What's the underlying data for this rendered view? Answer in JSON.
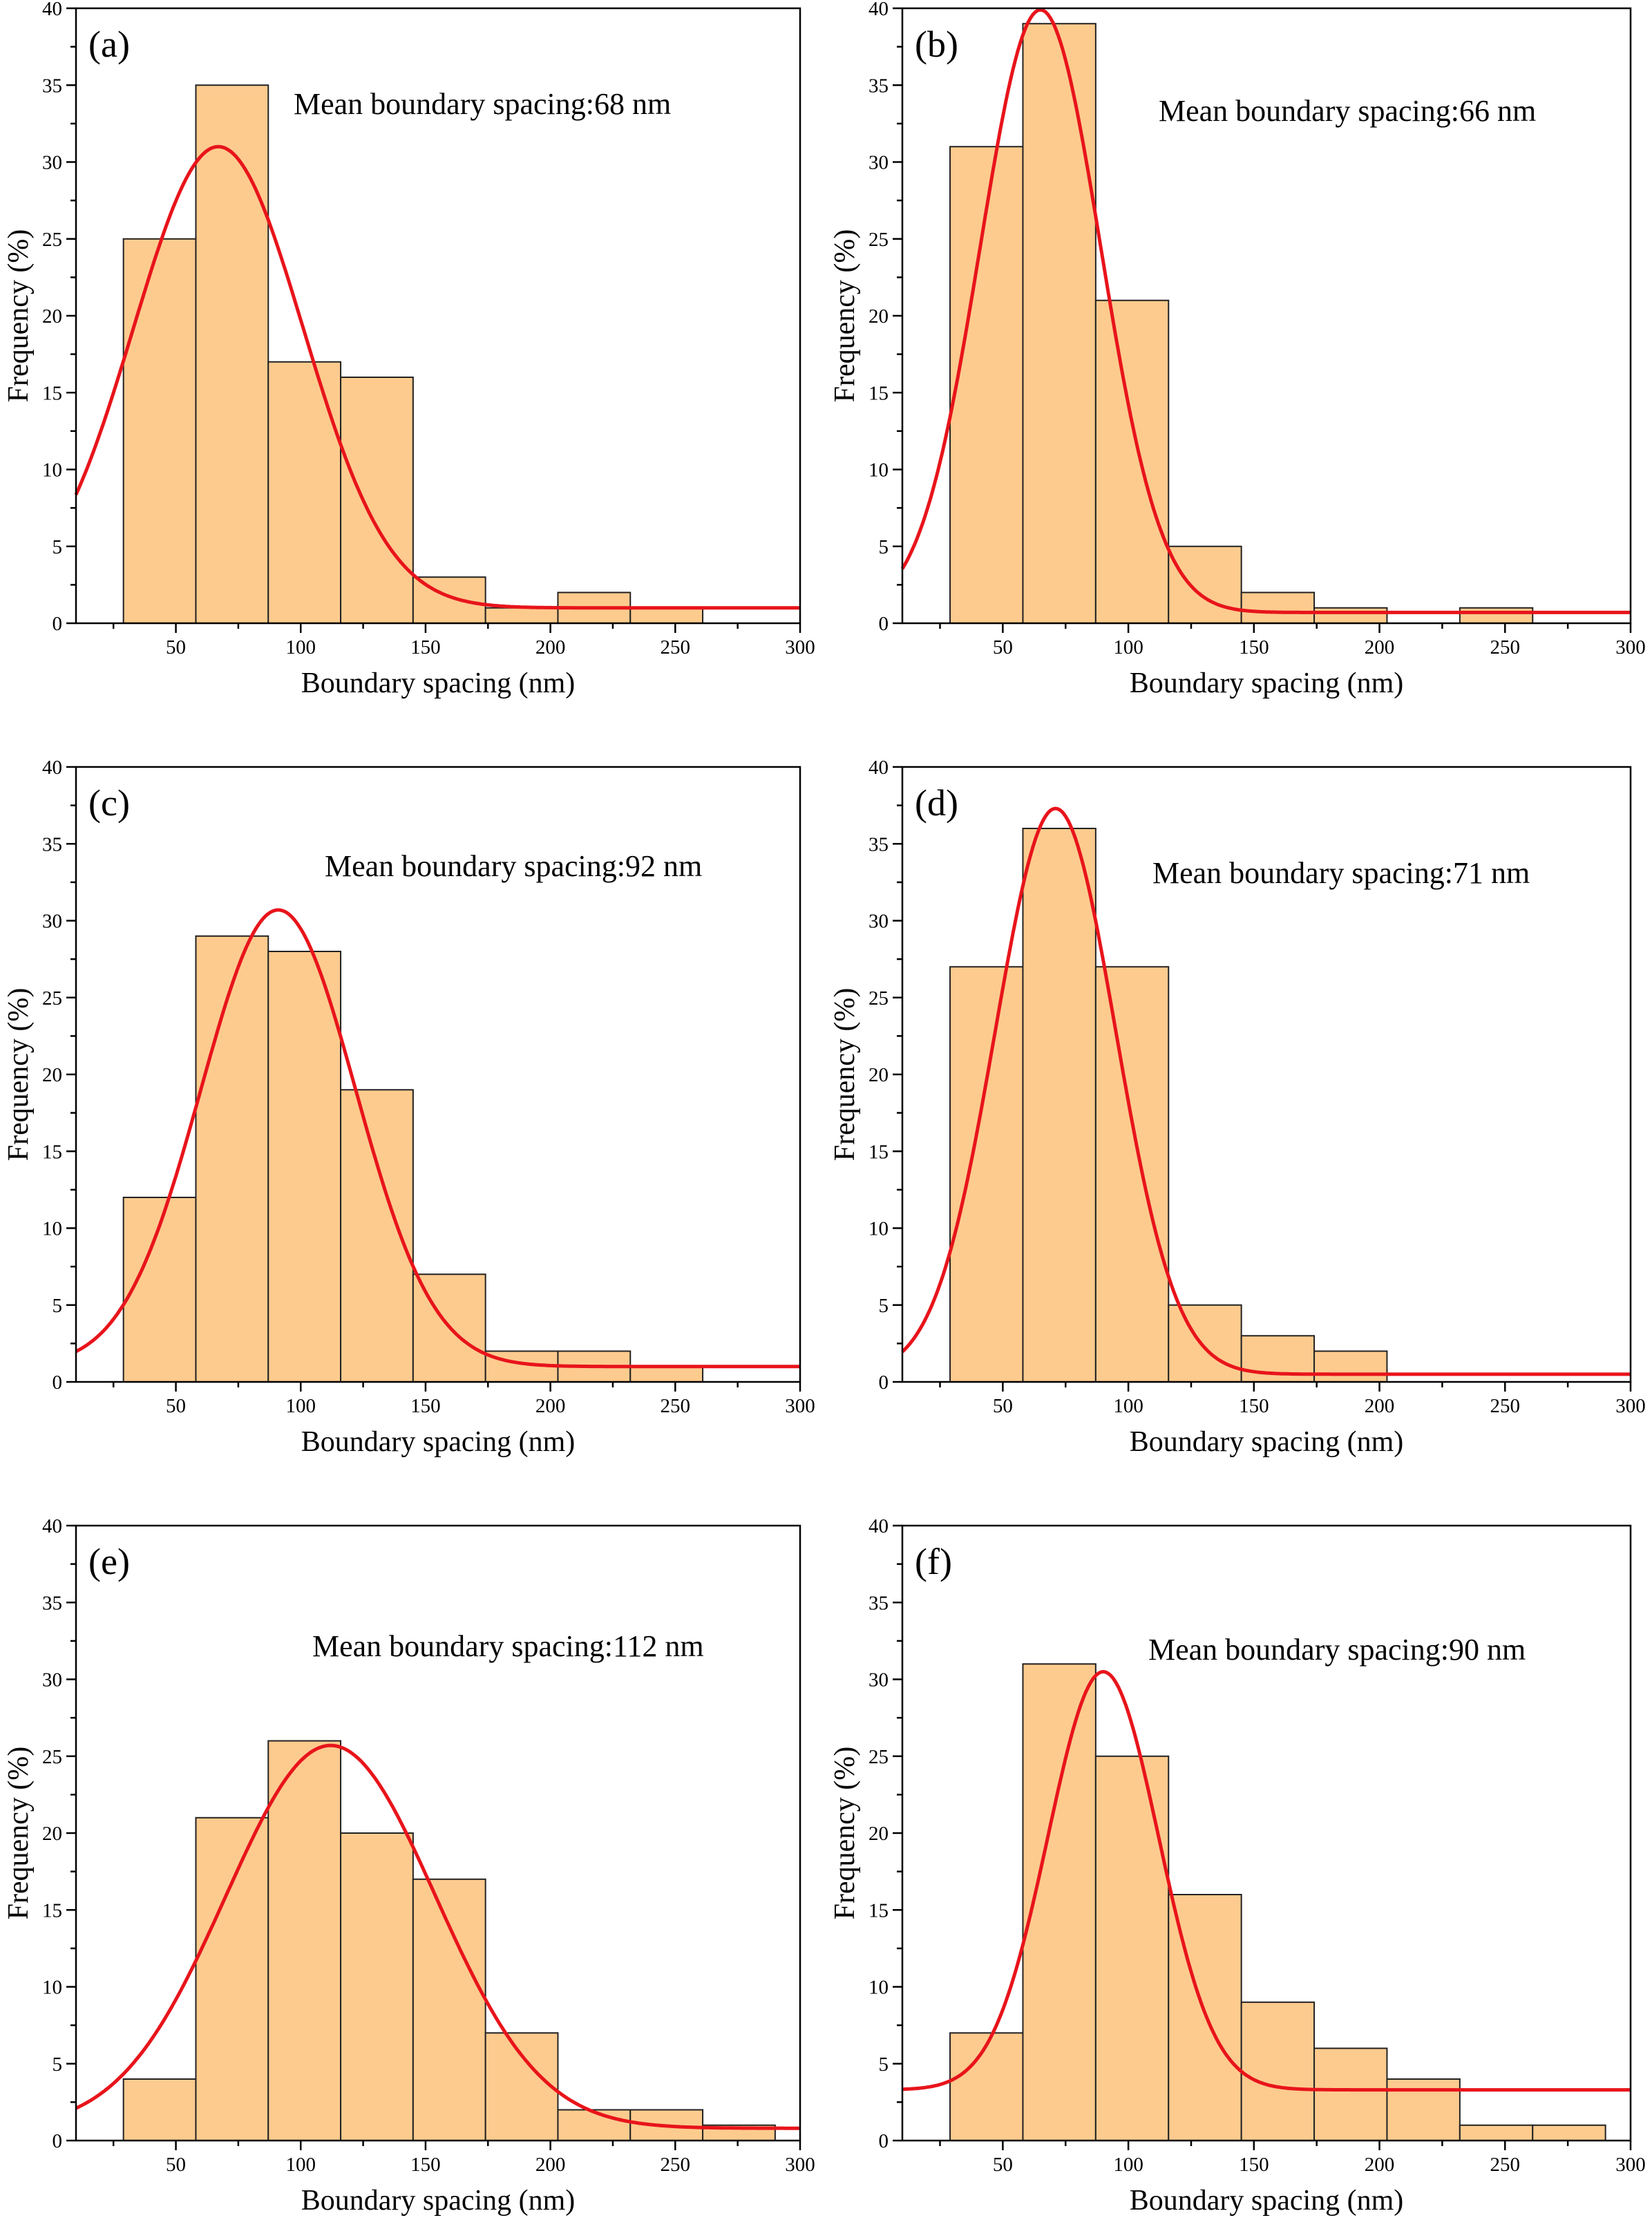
{
  "style": {
    "bar_fill": "#fdcb8e",
    "bar_stroke": "#222222",
    "fit_color": "#e8141b",
    "axis_color": "#000000"
  },
  "chart_data": [
    {
      "type": "bar",
      "label": "(a)",
      "title": "Mean boundary spacing:68 nm",
      "xlabel": "Boundary spacing (nm)",
      "ylabel": "Frequency (%)",
      "xlim": [
        10,
        300
      ],
      "ylim": [
        0,
        40
      ],
      "xticks": [
        "50",
        "100",
        "150",
        "200",
        "250",
        "300"
      ],
      "yticks": [
        "0",
        "5",
        "10",
        "15",
        "20",
        "25",
        "30",
        "35",
        "40"
      ],
      "bin_edges": [
        29,
        58,
        87,
        116,
        145,
        174,
        203,
        232,
        261
      ],
      "values": [
        25,
        35,
        17,
        16,
        3,
        1,
        2,
        1
      ],
      "fit": {
        "y0": 1.0,
        "amplitude": 30,
        "center": 67,
        "sigma": 34
      }
    },
    {
      "type": "bar",
      "label": "(b)",
      "title": "Mean boundary spacing:66 nm",
      "xlabel": "Boundary spacing (nm)",
      "ylabel": "Frequency (%)",
      "xlim": [
        10,
        300
      ],
      "ylim": [
        0,
        40
      ],
      "xticks": [
        "50",
        "100",
        "150",
        "200",
        "250",
        "300"
      ],
      "yticks": [
        "0",
        "5",
        "10",
        "15",
        "20",
        "25",
        "30",
        "35",
        "40"
      ],
      "bin_edges": [
        29,
        58,
        87,
        116,
        145,
        174,
        203,
        232,
        261
      ],
      "values": [
        31,
        39,
        21,
        5,
        2,
        1,
        0,
        1
      ],
      "fit": {
        "y0": 0.7,
        "amplitude": 39.2,
        "center": 65,
        "sigma": 24
      }
    },
    {
      "type": "bar",
      "label": "(c)",
      "title": "Mean boundary spacing:92 nm",
      "xlabel": "Boundary spacing (nm)",
      "ylabel": "Frequency (%)",
      "xlim": [
        10,
        300
      ],
      "ylim": [
        0,
        40
      ],
      "xticks": [
        "50",
        "100",
        "150",
        "200",
        "250",
        "300"
      ],
      "yticks": [
        "0",
        "5",
        "10",
        "15",
        "20",
        "25",
        "30",
        "35",
        "40"
      ],
      "bin_edges": [
        29,
        58,
        87,
        116,
        145,
        174,
        203,
        232,
        261
      ],
      "values": [
        12,
        29,
        28,
        19,
        7,
        2,
        2,
        1
      ],
      "fit": {
        "y0": 1.0,
        "amplitude": 29.7,
        "center": 91,
        "sigma": 31
      }
    },
    {
      "type": "bar",
      "label": "(d)",
      "title": "Mean boundary spacing:71 nm",
      "xlabel": "Boundary spacing (nm)",
      "ylabel": "Frequency (%)",
      "xlim": [
        10,
        300
      ],
      "ylim": [
        0,
        40
      ],
      "xticks": [
        "50",
        "100",
        "150",
        "200",
        "250",
        "300"
      ],
      "yticks": [
        "0",
        "5",
        "10",
        "15",
        "20",
        "25",
        "30",
        "35",
        "40"
      ],
      "bin_edges": [
        29,
        58,
        87,
        116,
        145,
        174,
        203
      ],
      "values": [
        27,
        36,
        27,
        5,
        3,
        2
      ],
      "fit": {
        "y0": 0.5,
        "amplitude": 36.8,
        "center": 71,
        "sigma": 24
      }
    },
    {
      "type": "bar",
      "label": "(e)",
      "title": "Mean boundary spacing:112 nm",
      "xlabel": "Boundary spacing (nm)",
      "ylabel": "Frequency (%)",
      "xlim": [
        10,
        300
      ],
      "ylim": [
        0,
        40
      ],
      "xticks": [
        "50",
        "100",
        "150",
        "200",
        "250",
        "300"
      ],
      "yticks": [
        "0",
        "5",
        "10",
        "15",
        "20",
        "25",
        "30",
        "35",
        "40"
      ],
      "bin_edges": [
        29,
        58,
        87,
        116,
        145,
        174,
        203,
        232,
        261,
        290
      ],
      "values": [
        4,
        21,
        26,
        20,
        17,
        7,
        2,
        2,
        1
      ],
      "fit": {
        "y0": 0.8,
        "amplitude": 24.9,
        "center": 112,
        "sigma": 42
      }
    },
    {
      "type": "bar",
      "label": "(f)",
      "title": "Mean boundary spacing:90 nm",
      "xlabel": "Boundary spacing (nm)",
      "ylabel": "Frequency (%)",
      "xlim": [
        10,
        300
      ],
      "ylim": [
        0,
        40
      ],
      "xticks": [
        "50",
        "100",
        "150",
        "200",
        "250",
        "300"
      ],
      "yticks": [
        "0",
        "5",
        "10",
        "15",
        "20",
        "25",
        "30",
        "35",
        "40"
      ],
      "bin_edges": [
        29,
        58,
        87,
        116,
        145,
        174,
        203,
        232,
        261,
        290
      ],
      "values": [
        7,
        31,
        25,
        16,
        9,
        6,
        4,
        1,
        1
      ],
      "fit": {
        "y0": 3.3,
        "amplitude": 27.2,
        "center": 90,
        "sigma": 22
      }
    }
  ]
}
